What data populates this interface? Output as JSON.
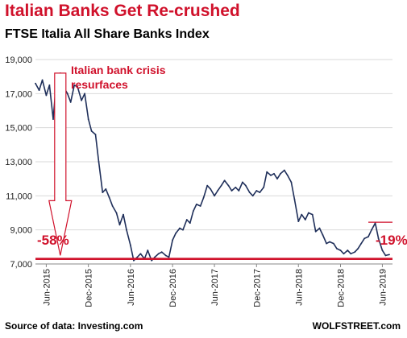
{
  "header": {
    "title": "Italian Banks Get Re-crushed",
    "subtitle": "FTSE Italia All Share Banks Index"
  },
  "footer": {
    "source": "Source of data: Investing.com",
    "brand": "WOLFSTREET.com"
  },
  "colors": {
    "line": "#1f2f5a",
    "accent": "#d0112b",
    "grid": "#d9d9d9"
  },
  "annotations": {
    "crisis_label": "Italian bank crisis resurfaces",
    "drop_label": "-58%",
    "recent_label": "-19%"
  },
  "chart_data": {
    "type": "line",
    "title": "FTSE Italia All Share Banks Index",
    "ylim": [
      7000,
      19000
    ],
    "yticks": [
      7000,
      9000,
      11000,
      13000,
      15000,
      17000,
      19000
    ],
    "ytick_labels": [
      "7,000",
      "9,000",
      "11,000",
      "13,000",
      "15,000",
      "17,000",
      "19,000"
    ],
    "xlim": [
      "2015-04-15",
      "2019-07-15"
    ],
    "xticks": [
      "2015-06-01",
      "2015-12-01",
      "2016-06-01",
      "2016-12-01",
      "2017-06-01",
      "2017-12-01",
      "2018-06-01",
      "2018-12-01",
      "2019-06-01"
    ],
    "xtick_labels": [
      "Jun-2015",
      "Dec-2015",
      "Jun-2016",
      "Dec-2016",
      "Jun-2017",
      "Dec-2017",
      "Jun-2018",
      "Dec-2018",
      "Jun-2019"
    ],
    "grid": true,
    "series": [
      {
        "x": [
          "2015-04-15",
          "2015-05-01",
          "2015-05-15",
          "2015-06-01",
          "2015-06-15",
          "2015-07-01",
          "2015-07-15",
          "2015-08-01",
          "2015-08-15",
          "2015-09-01",
          "2015-09-15",
          "2015-10-01",
          "2015-10-15",
          "2015-11-01",
          "2015-11-15",
          "2015-12-01",
          "2015-12-15",
          "2016-01-01",
          "2016-01-15",
          "2016-02-01",
          "2016-02-15",
          "2016-03-01",
          "2016-03-15",
          "2016-04-01",
          "2016-04-15",
          "2016-05-01",
          "2016-05-15",
          "2016-06-01",
          "2016-06-15",
          "2016-07-01",
          "2016-07-15",
          "2016-08-01",
          "2016-08-15",
          "2016-09-01",
          "2016-09-15",
          "2016-10-01",
          "2016-10-15",
          "2016-11-01",
          "2016-11-15",
          "2016-12-01",
          "2016-12-15",
          "2017-01-01",
          "2017-01-15",
          "2017-02-01",
          "2017-02-15",
          "2017-03-01",
          "2017-03-15",
          "2017-04-01",
          "2017-04-15",
          "2017-05-01",
          "2017-05-15",
          "2017-06-01",
          "2017-06-15",
          "2017-07-01",
          "2017-07-15",
          "2017-08-01",
          "2017-08-15",
          "2017-09-01",
          "2017-09-15",
          "2017-10-01",
          "2017-10-15",
          "2017-11-01",
          "2017-11-15",
          "2017-12-01",
          "2017-12-15",
          "2018-01-01",
          "2018-01-15",
          "2018-02-01",
          "2018-02-15",
          "2018-03-01",
          "2018-03-15",
          "2018-04-01",
          "2018-04-15",
          "2018-05-01",
          "2018-05-15",
          "2018-06-01",
          "2018-06-15",
          "2018-07-01",
          "2018-07-15",
          "2018-08-01",
          "2018-08-15",
          "2018-09-01",
          "2018-09-15",
          "2018-10-01",
          "2018-10-15",
          "2018-11-01",
          "2018-11-15",
          "2018-12-01",
          "2018-12-15",
          "2019-01-01",
          "2019-01-15",
          "2019-02-01",
          "2019-02-15",
          "2019-03-01",
          "2019-03-15",
          "2019-04-01",
          "2019-04-15",
          "2019-05-01",
          "2019-05-15",
          "2019-06-01",
          "2019-06-15",
          "2019-07-01"
        ],
        "values": [
          17600,
          17200,
          17800,
          16900,
          17500,
          15500,
          17800,
          18200,
          17400,
          17000,
          16500,
          17500,
          17400,
          16600,
          17000,
          15500,
          14800,
          14600,
          13000,
          11200,
          11400,
          10900,
          10400,
          10000,
          9300,
          9900,
          9000,
          8100,
          7200,
          7400,
          7600,
          7300,
          7800,
          7200,
          7400,
          7600,
          7700,
          7500,
          7400,
          8400,
          8800,
          9100,
          9000,
          9600,
          9400,
          10100,
          10500,
          10400,
          10900,
          11600,
          11400,
          11000,
          11300,
          11600,
          11900,
          11600,
          11300,
          11500,
          11300,
          11800,
          11600,
          11200,
          11000,
          11300,
          11200,
          11500,
          12400,
          12200,
          12300,
          12000,
          12300,
          12500,
          12200,
          11800,
          10800,
          9500,
          9900,
          9600,
          10000,
          9900,
          8900,
          9100,
          8700,
          8200,
          8300,
          8200,
          7900,
          7800,
          7600,
          7800,
          7600,
          7700,
          7900,
          8200,
          8500,
          8600,
          9000,
          9400,
          8500,
          7800,
          7500,
          7550
        ]
      }
    ],
    "reference_lines": [
      {
        "y": 7300,
        "color": "#d0112b"
      },
      {
        "y": 9450,
        "x_start": "2019-04-01",
        "x_end": "2019-07-15",
        "color": "#d0112b"
      }
    ],
    "drop_arrow": {
      "x": "2015-08-01",
      "y_from": 18200,
      "y_to": 7500
    }
  }
}
